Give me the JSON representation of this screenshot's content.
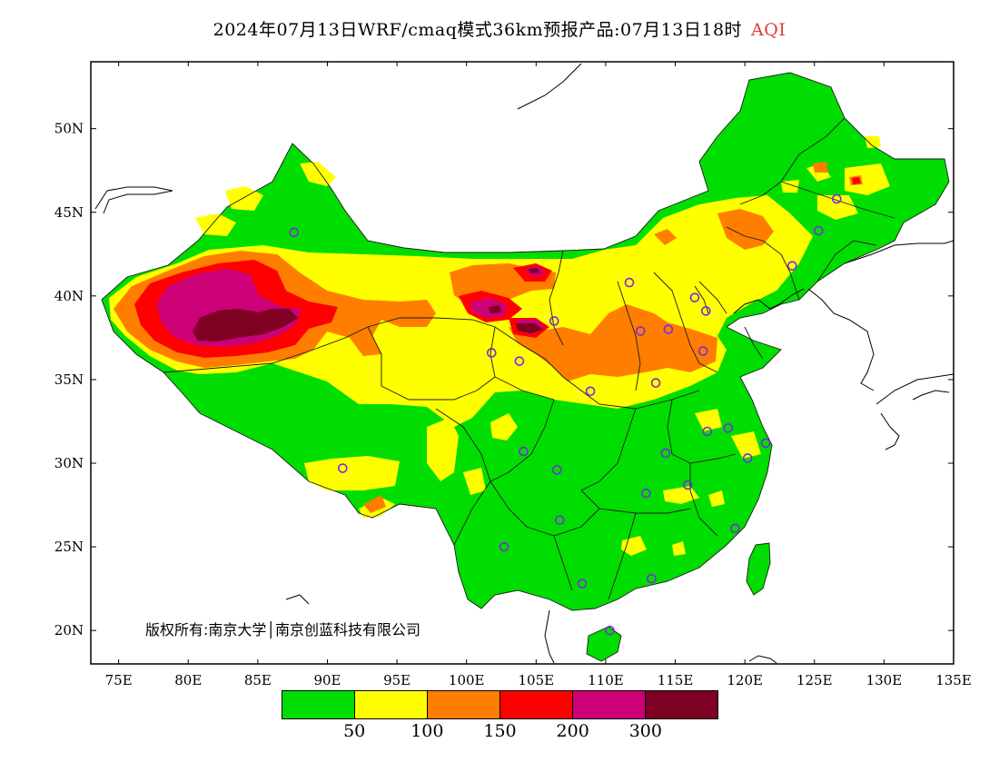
{
  "title": {
    "main": "2024年07月13日WRF/cmaq模式36km预报产品:07月13日18时",
    "product": "AQI"
  },
  "credit": "版权所有:南京大学│南京创蓝科技有限公司",
  "map": {
    "lon_range": [
      73,
      135
    ],
    "lat_range": [
      18,
      54
    ],
    "x_ticks": [
      "75E",
      "80E",
      "85E",
      "90E",
      "95E",
      "100E",
      "105E",
      "110E",
      "115E",
      "120E",
      "125E",
      "130E",
      "135E"
    ],
    "y_ticks": [
      "20N",
      "25N",
      "30N",
      "35N",
      "40N",
      "45N",
      "50N"
    ]
  },
  "legend": {
    "colors": [
      "#00dd00",
      "#ffff00",
      "#ff7e00",
      "#ff0000",
      "#cc0077",
      "#7e0023"
    ],
    "labels": [
      "50",
      "100",
      "150",
      "200",
      "300"
    ]
  },
  "stations": [
    [
      87.6,
      43.8
    ],
    [
      91.1,
      29.7
    ],
    [
      101.8,
      36.6
    ],
    [
      103.8,
      36.1
    ],
    [
      106.3,
      38.5
    ],
    [
      111.7,
      40.8
    ],
    [
      112.5,
      37.9
    ],
    [
      114.5,
      38.0
    ],
    [
      116.4,
      39.9
    ],
    [
      117.2,
      39.1
    ],
    [
      117.0,
      36.7
    ],
    [
      113.6,
      34.8
    ],
    [
      108.9,
      34.3
    ],
    [
      104.1,
      30.7
    ],
    [
      106.5,
      29.6
    ],
    [
      114.3,
      30.6
    ],
    [
      117.3,
      31.9
    ],
    [
      118.8,
      32.1
    ],
    [
      121.5,
      31.2
    ],
    [
      120.2,
      30.3
    ],
    [
      112.9,
      28.2
    ],
    [
      115.9,
      28.7
    ],
    [
      119.3,
      26.1
    ],
    [
      106.7,
      26.6
    ],
    [
      102.7,
      25.0
    ],
    [
      108.3,
      22.8
    ],
    [
      113.3,
      23.1
    ],
    [
      110.3,
      20.0
    ],
    [
      125.3,
      43.9
    ],
    [
      126.6,
      45.8
    ],
    [
      123.4,
      41.8
    ]
  ]
}
